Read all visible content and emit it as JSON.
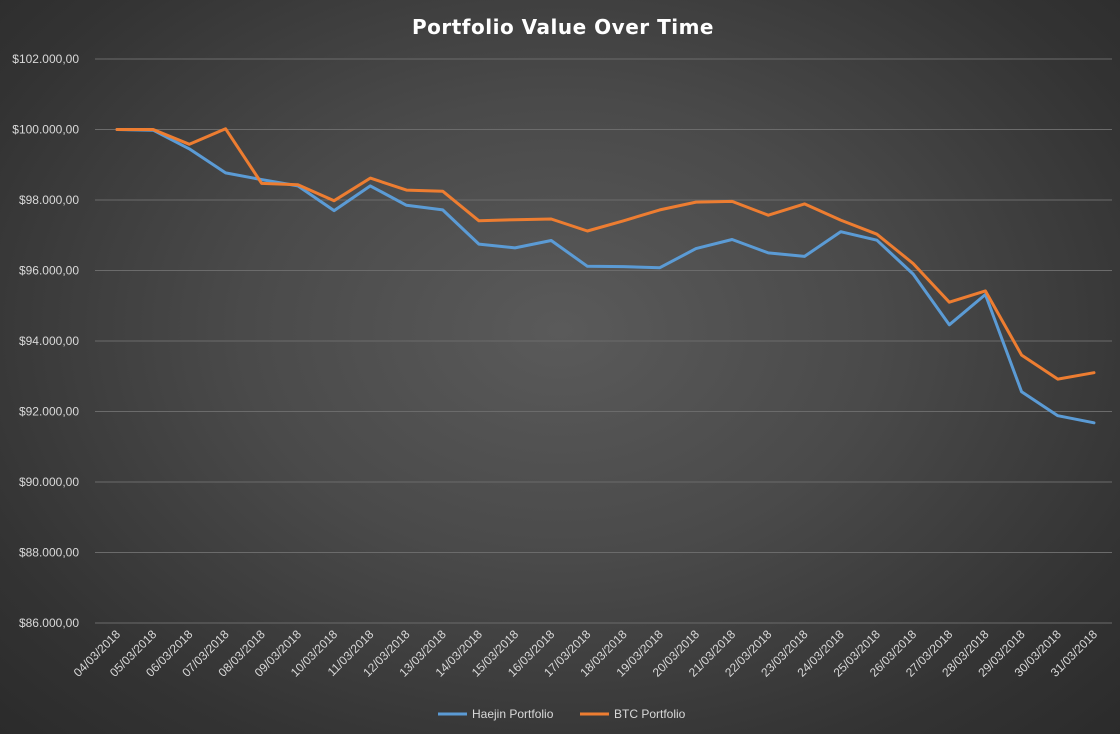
{
  "chart_data": {
    "type": "line",
    "title": "Portfolio Value Over Time",
    "xlabel": "",
    "ylabel": "",
    "ylim": [
      86000,
      102000
    ],
    "yticks": [
      "$86.000,00",
      "$88.000,00",
      "$90.000,00",
      "$92.000,00",
      "$94.000,00",
      "$96.000,00",
      "$98.000,00",
      "$100.000,00",
      "$102.000,00"
    ],
    "ytick_values": [
      86000,
      88000,
      90000,
      92000,
      94000,
      96000,
      98000,
      100000,
      102000
    ],
    "grid": true,
    "legend_position": "bottom",
    "categories": [
      "04/03/2018",
      "05/03/2018",
      "06/03/2018",
      "07/03/2018",
      "08/03/2018",
      "09/03/2018",
      "10/03/2018",
      "11/03/2018",
      "12/03/2018",
      "13/03/2018",
      "14/03/2018",
      "15/03/2018",
      "16/03/2018",
      "17/03/2018",
      "18/03/2018",
      "19/03/2018",
      "20/03/2018",
      "21/03/2018",
      "22/03/2018",
      "23/03/2018",
      "24/03/2018",
      "25/03/2018",
      "26/03/2018",
      "27/03/2018",
      "28/03/2018",
      "29/03/2018",
      "30/03/2018",
      "31/03/2018"
    ],
    "series": [
      {
        "name": "Haejin Portfolio",
        "color": "#5b9bd5",
        "values": [
          100000,
          99980,
          99450,
          98770,
          98580,
          98400,
          97700,
          98400,
          97850,
          97720,
          96750,
          96640,
          96850,
          96120,
          96110,
          96080,
          96620,
          96880,
          96500,
          96400,
          97100,
          96860,
          95900,
          94460,
          95320,
          92560,
          91880,
          91680
        ]
      },
      {
        "name": "BTC Portfolio",
        "color": "#ed7d31",
        "values": [
          100000,
          100000,
          99580,
          100020,
          98470,
          98430,
          97980,
          98620,
          98280,
          98250,
          97410,
          97440,
          97460,
          97120,
          97410,
          97720,
          97940,
          97960,
          97570,
          97890,
          97430,
          97030,
          96200,
          95100,
          95420,
          93600,
          92920,
          93100
        ]
      }
    ]
  }
}
